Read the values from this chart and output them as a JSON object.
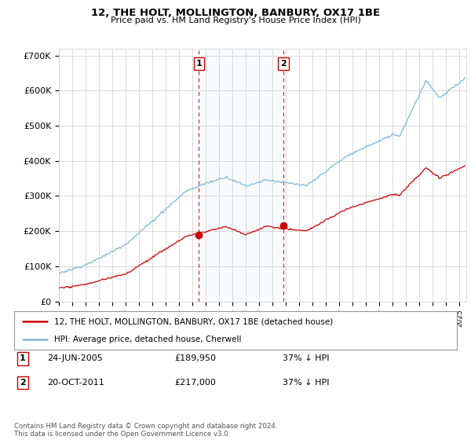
{
  "title": "12, THE HOLT, MOLLINGTON, BANBURY, OX17 1BE",
  "subtitle": "Price paid vs. HM Land Registry's House Price Index (HPI)",
  "ylabel_ticks": [
    "£0",
    "£100K",
    "£200K",
    "£300K",
    "£400K",
    "£500K",
    "£600K",
    "£700K"
  ],
  "ylim": [
    0,
    720000
  ],
  "xlim_start": 1995.0,
  "xlim_end": 2025.5,
  "hpi_color": "#7ab8d9",
  "price_color": "#cc0000",
  "vline_color": "#cc0000",
  "marker1_date": 2005.48,
  "marker2_date": 2011.8,
  "marker1_price": 189950,
  "marker2_price": 217000,
  "transaction1": "24-JUN-2005",
  "transaction2": "20-OCT-2011",
  "price1": "£189,950",
  "price2": "£217,000",
  "pct1": "37% ↓ HPI",
  "pct2": "37% ↓ HPI",
  "legend_label1": "12, THE HOLT, MOLLINGTON, BANBURY, OX17 1BE (detached house)",
  "legend_label2": "HPI: Average price, detached house, Cherwell",
  "footer": "Contains HM Land Registry data © Crown copyright and database right 2024.\nThis data is licensed under the Open Government Licence v3.0.",
  "background_color": "#ffffff",
  "grid_color": "#cccccc",
  "span_color": "#d0e8f5"
}
